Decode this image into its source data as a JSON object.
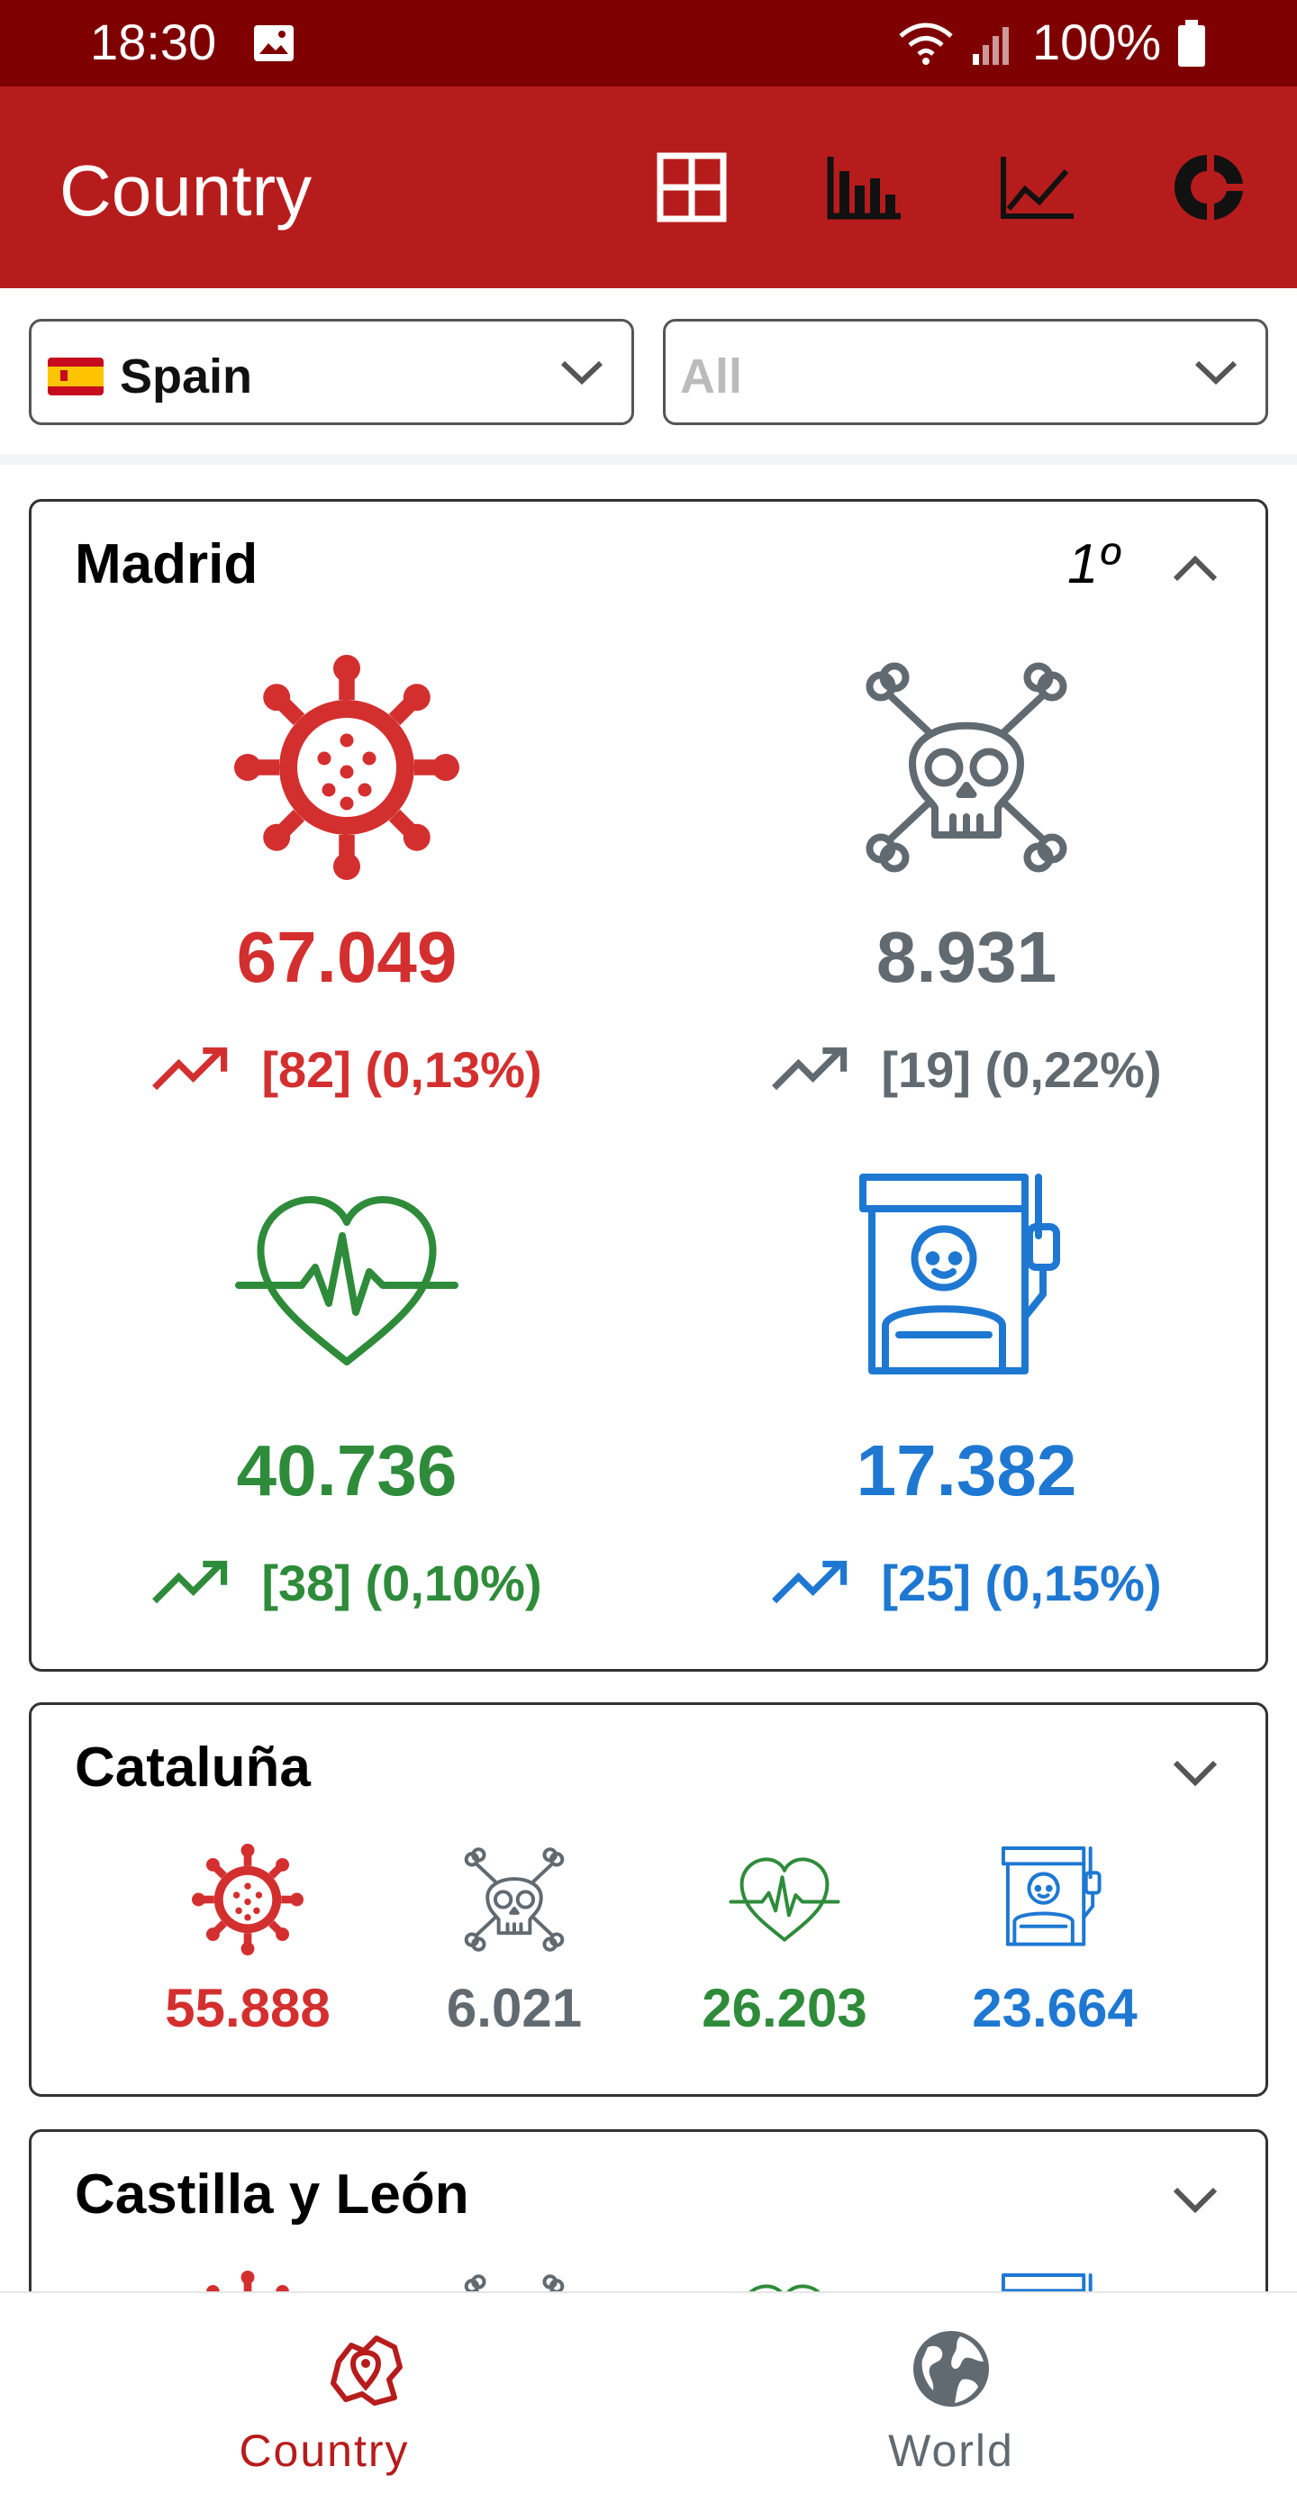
{
  "status_bar": {
    "time": "18:30",
    "battery": "100%"
  },
  "app_bar": {
    "title": "Country",
    "actions": [
      "grid-icon",
      "bar-chart-icon",
      "line-chart-icon",
      "donut-chart-icon"
    ]
  },
  "filters": {
    "country": "Spain",
    "region_placeholder": "All"
  },
  "colors": {
    "confirmed": "#d32f2f",
    "deaths": "#616a70",
    "recovered": "#2e8b3a",
    "hospitalized": "#1e78d2",
    "appbar": "#b71c1c",
    "statusbar": "#7f0000"
  },
  "cards": {
    "madrid": {
      "name": "Madrid",
      "rank": "1º",
      "confirmed": {
        "value": "67.049",
        "delta": "[82] (0,13%)"
      },
      "deaths": {
        "value": "8.931",
        "delta": "[19] (0,22%)"
      },
      "recovered": {
        "value": "40.736",
        "delta": "[38] (0,10%)"
      },
      "hospitalized": {
        "value": "17.382",
        "delta": "[25] (0,15%)"
      }
    },
    "cataluna": {
      "name": "Cataluña",
      "confirmed": "55.888",
      "deaths": "6.021",
      "recovered": "26.203",
      "hospitalized": "23.664"
    },
    "castilla": {
      "name": "Castilla y León"
    }
  },
  "bottom_nav": {
    "country": "Country",
    "world": "World"
  }
}
